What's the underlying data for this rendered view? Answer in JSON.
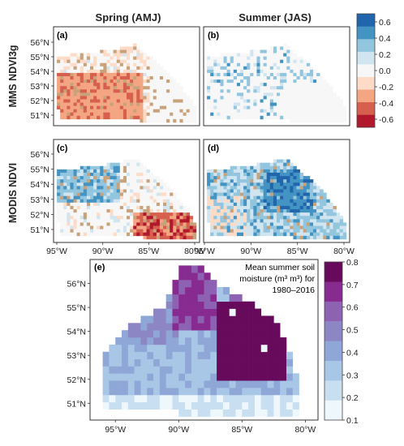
{
  "headers": {
    "col1": "Spring (AMJ)",
    "col2": "Summer (JAS)",
    "row1": "MMS NDVI3g",
    "row2": "MODIS NDVI"
  },
  "colors": {
    "diverging": [
      "#b2182b",
      "#d6604d",
      "#f4a582",
      "#fddbc7",
      "#f7f7f7",
      "#d1e5f0",
      "#92c5de",
      "#4393c3",
      "#2166ac"
    ],
    "sequential": [
      "#eef7fb",
      "#c7dff0",
      "#a8c6e6",
      "#8fa7d6",
      "#8c86c4",
      "#8e62b3",
      "#872b91",
      "#670a5c"
    ]
  },
  "chart_data": [
    {
      "type": "heatmap",
      "panel": "(a)",
      "title": "",
      "row_label": "MMS NDVI3g",
      "column_label": "Spring (AMJ)",
      "y_ticks": [
        "56°N",
        "55°N",
        "54°N",
        "53°N",
        "52°N",
        "51°N"
      ],
      "x_ticks": [],
      "pattern": "mostly negative values (red) over the south-west, mixed near-zero elsewhere"
    },
    {
      "type": "heatmap",
      "panel": "(b)",
      "title": "",
      "row_label": "MMS NDVI3g",
      "column_label": "Summer (JAS)",
      "y_ticks": [],
      "x_ticks": [],
      "pattern": "scattered weak positive values (blue), near zero over the south-east"
    },
    {
      "type": "heatmap",
      "panel": "(c)",
      "title": "",
      "row_label": "MODIS NDVI",
      "column_label": "Spring (AMJ)",
      "y_ticks": [
        "56°N",
        "55°N",
        "54°N",
        "53°N",
        "52°N",
        "51°N"
      ],
      "x_ticks": [
        "95°W",
        "90°W",
        "85°W",
        "80°W"
      ],
      "pattern": "positive values in the north-west, strongly negative in the south-east"
    },
    {
      "type": "heatmap",
      "panel": "(d)",
      "title": "",
      "row_label": "MODIS NDVI",
      "column_label": "Summer (JAS)",
      "y_ticks": [],
      "x_ticks": [
        "95°W",
        "90°W",
        "85°W",
        "80°W"
      ],
      "pattern": "widespread positive values (blue), strongest in the east-centre"
    },
    {
      "type": "heatmap",
      "panel": "(e)",
      "title": "Mean summer soil moisture (m³ m³) for 1980–2016",
      "title_lines": [
        "Mean summer soil",
        "moisture (m³ m³) for",
        "1980–2016"
      ],
      "y_ticks": [
        "56°N",
        "55°N",
        "54°N",
        "53°N",
        "52°N",
        "51°N"
      ],
      "x_ticks": [
        "95°W",
        "90°W",
        "85°W",
        "80°W"
      ],
      "xlim": [
        -97,
        -79
      ],
      "ylim": [
        50.3,
        57.0
      ],
      "pattern": "highest moisture (~0.75) in a block centred near 84°W 53.5°N, lower values (0.2–0.4) towards the west and south"
    }
  ],
  "colorbar_diverging": {
    "ticks": [
      "0.6",
      "0.4",
      "0.2",
      "0.0",
      "-0.2",
      "-0.4",
      "-0.6"
    ],
    "range": [
      -0.7,
      0.7
    ]
  },
  "colorbar_sequential": {
    "ticks": [
      "0.8",
      "0.7",
      "0.6",
      "0.5",
      "0.4",
      "0.3",
      "0.2",
      "0.1"
    ],
    "range": [
      0.1,
      0.8
    ]
  }
}
